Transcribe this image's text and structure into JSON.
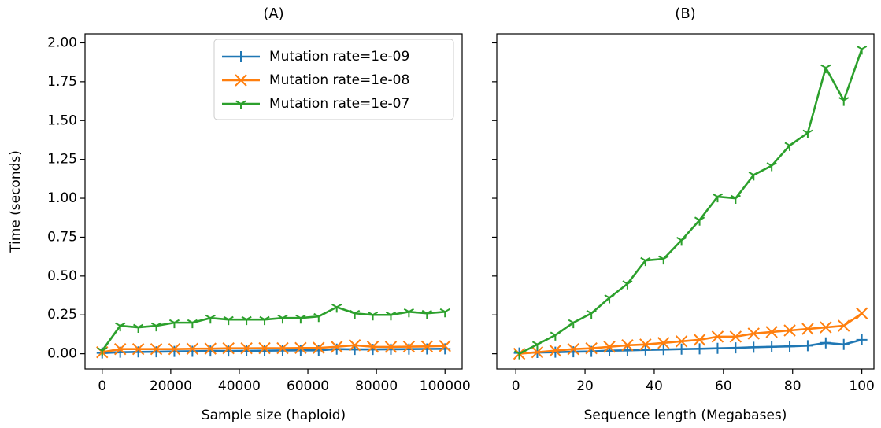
{
  "chart_data": [
    {
      "type": "line",
      "title": "(A)",
      "x_label": "Sample size (haploid)",
      "y_label": "Time (seconds)",
      "x": [
        0,
        5263,
        10526,
        15789,
        21053,
        26316,
        31579,
        36842,
        42105,
        47368,
        52632,
        57895,
        63158,
        68421,
        73684,
        78947,
        84211,
        89474,
        94737,
        100000
      ],
      "series": [
        {
          "name": "Mutation rate=1e-09",
          "color": "#1f77b4",
          "marker": "plus",
          "values": [
            0.005,
            0.01,
            0.012,
            0.013,
            0.015,
            0.016,
            0.018,
            0.018,
            0.019,
            0.02,
            0.021,
            0.022,
            0.022,
            0.03,
            0.028,
            0.028,
            0.029,
            0.03,
            0.031,
            0.032
          ]
        },
        {
          "name": "Mutation rate=1e-08",
          "color": "#ff7f0e",
          "marker": "x",
          "values": [
            0.01,
            0.03,
            0.03,
            0.03,
            0.03,
            0.032,
            0.033,
            0.035,
            0.035,
            0.036,
            0.036,
            0.037,
            0.038,
            0.045,
            0.055,
            0.045,
            0.044,
            0.046,
            0.047,
            0.05
          ]
        },
        {
          "name": "Mutation rate=1e-07",
          "color": "#2ca02c",
          "marker": "tri_down",
          "values": [
            0.02,
            0.18,
            0.17,
            0.18,
            0.2,
            0.2,
            0.23,
            0.22,
            0.22,
            0.22,
            0.23,
            0.23,
            0.24,
            0.3,
            0.26,
            0.25,
            0.25,
            0.27,
            0.26,
            0.27
          ]
        }
      ],
      "xlim": [
        -5000,
        105000
      ],
      "xticks": [
        0,
        20000,
        40000,
        60000,
        80000,
        100000
      ],
      "ylim": [
        -0.098,
        2.058
      ],
      "yticks": [
        {
          "value": 0,
          "label": "0.00"
        },
        {
          "value": 0.25,
          "label": "0.25"
        },
        {
          "value": 0.5,
          "label": "0.50"
        },
        {
          "value": 0.75,
          "label": "0.75"
        },
        {
          "value": 1,
          "label": "1.00"
        },
        {
          "value": 1.25,
          "label": "1.25"
        },
        {
          "value": 1.5,
          "label": "1.50"
        },
        {
          "value": 1.75,
          "label": "1.75"
        },
        {
          "value": 2,
          "label": "2.00"
        }
      ],
      "legend": "upper right"
    },
    {
      "type": "line",
      "title": "(B)",
      "x_label": "Sequence length (Megabases)",
      "x": [
        1,
        6.21,
        11.42,
        16.63,
        21.84,
        27.05,
        32.26,
        37.47,
        42.68,
        47.89,
        53.11,
        58.32,
        63.53,
        68.74,
        73.95,
        79.16,
        84.37,
        89.58,
        94.79,
        100
      ],
      "series": [
        {
          "name": "Mutation rate=1e-09",
          "color": "#1f77b4",
          "marker": "plus",
          "values": [
            0.005,
            0.008,
            0.01,
            0.013,
            0.015,
            0.02,
            0.022,
            0.025,
            0.027,
            0.03,
            0.032,
            0.035,
            0.038,
            0.042,
            0.045,
            0.048,
            0.052,
            0.07,
            0.06,
            0.09
          ]
        },
        {
          "name": "Mutation rate=1e-08",
          "color": "#ff7f0e",
          "marker": "x",
          "values": [
            0.0,
            0.01,
            0.02,
            0.03,
            0.035,
            0.045,
            0.055,
            0.06,
            0.07,
            0.08,
            0.09,
            0.11,
            0.11,
            0.13,
            0.14,
            0.15,
            0.16,
            0.17,
            0.18,
            0.26
          ]
        },
        {
          "name": "Mutation rate=1e-07",
          "color": "#2ca02c",
          "marker": "tri_down",
          "values": [
            0.0,
            0.06,
            0.12,
            0.2,
            0.26,
            0.36,
            0.45,
            0.6,
            0.61,
            0.73,
            0.86,
            1.01,
            1.0,
            1.15,
            1.21,
            1.34,
            1.42,
            1.84,
            1.63,
            1.96
          ]
        }
      ],
      "xlim": [
        -5.5,
        103.5
      ],
      "xticks": [
        0,
        20,
        40,
        60,
        80,
        100
      ],
      "ylim": [
        -0.098,
        2.058
      ],
      "yticks": [
        0,
        0.25,
        0.5,
        0.75,
        1,
        1.25,
        1.5,
        1.75,
        2
      ]
    }
  ]
}
